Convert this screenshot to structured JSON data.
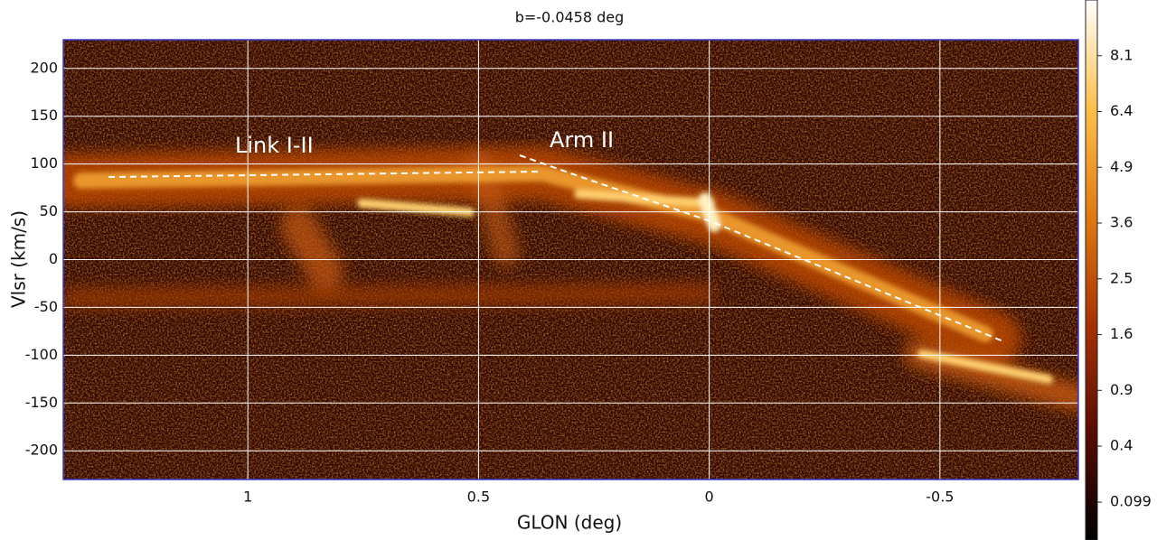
{
  "chart_data": {
    "type": "heatmap",
    "title": "b=-0.0458 deg",
    "x_label": "GLON (deg)",
    "y_label": "Vlsr (km/s)",
    "xlim": [
      1.4,
      -0.8
    ],
    "xticks": [
      1,
      0.5,
      0,
      -0.5
    ],
    "ylim": [
      -230,
      230
    ],
    "yticks": [
      -200,
      -150,
      -100,
      -50,
      0,
      50,
      100,
      150,
      200
    ],
    "grid": true,
    "colorbar": {
      "lim": [
        0.01,
        10
      ],
      "scale": "sqrt",
      "ticks": [
        0.099,
        0.4,
        0.9,
        1.6,
        2.5,
        3.6,
        4.9,
        6.4,
        8.1
      ],
      "colormap": [
        "#000000",
        "#5a0c00",
        "#a83200",
        "#e07a10",
        "#ffc04a",
        "#ffffff"
      ]
    },
    "annotations": [
      "Link I-II",
      "Arm II"
    ]
  }
}
